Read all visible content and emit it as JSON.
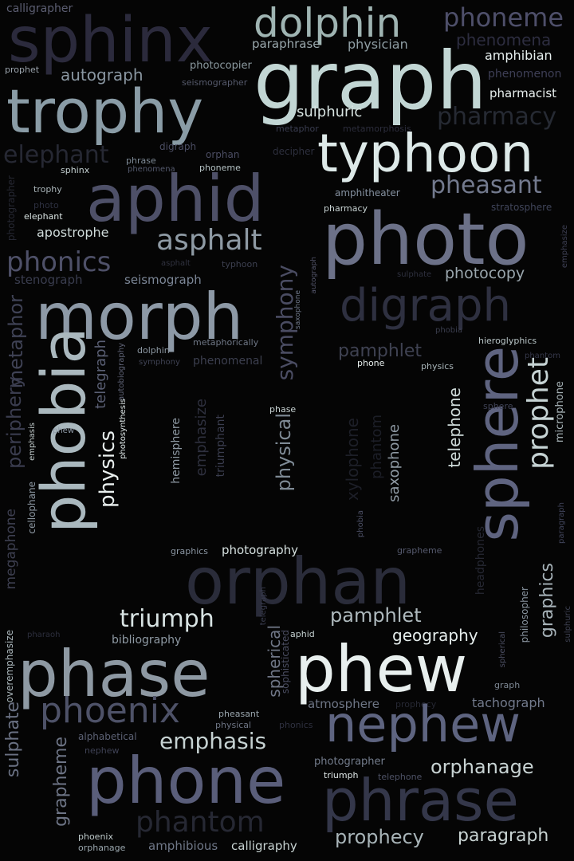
{
  "cloud": {
    "background": "#050505",
    "words": [
      {
        "text": "sphinx",
        "color": "#2b2a3c"
      },
      {
        "text": "dolphin",
        "color": "#9fb4b2"
      },
      {
        "text": "phoneme",
        "color": "#4e4f6a"
      },
      {
        "text": "phenomena",
        "color": "#2d2d40"
      },
      {
        "text": "graph",
        "color": "#c2d6d4"
      },
      {
        "text": "paraphrase",
        "color": "#9aa8ad"
      },
      {
        "text": "physician",
        "color": "#8f9ea4"
      },
      {
        "text": "amphibian",
        "color": "#e6efee"
      },
      {
        "text": "calligrapher",
        "color": "#5c5e72"
      },
      {
        "text": "prophet",
        "color": "#9aa3ac"
      },
      {
        "text": "autograph",
        "color": "#8a97a2"
      },
      {
        "text": "photocopier",
        "color": "#8c9aa0"
      },
      {
        "text": "seismographer",
        "color": "#565a6c"
      },
      {
        "text": "phenomenon",
        "color": "#3e3f56"
      },
      {
        "text": "pharmacist",
        "color": "#e9f0ef"
      },
      {
        "text": "trophy",
        "color": "#8a9ca6"
      },
      {
        "text": "sulphuric",
        "color": "#d8e4e2"
      },
      {
        "text": "pharmacy",
        "color": "#262a33"
      },
      {
        "text": "metaphor",
        "color": "#3a3d50"
      },
      {
        "text": "metamorphosis",
        "color": "#2c2d3c"
      },
      {
        "text": "typhoon",
        "color": "#dde9e8"
      },
      {
        "text": "digraph",
        "color": "#4b4d63"
      },
      {
        "text": "orphan",
        "color": "#4b4d63"
      },
      {
        "text": "decipher",
        "color": "#2d2f3d"
      },
      {
        "text": "elephant",
        "color": "#262833"
      },
      {
        "text": "phrase",
        "color": "#7e8a96"
      },
      {
        "text": "phenomena",
        "color": "#555a6e"
      },
      {
        "text": "phoneme",
        "color": "#b3c0c2"
      },
      {
        "text": "sphinx",
        "color": "#c5d1d2"
      },
      {
        "text": "pheasant",
        "color": "#737a8e"
      },
      {
        "text": "trophy",
        "color": "#a8b3b7"
      },
      {
        "text": "aphid",
        "color": "#4e5068"
      },
      {
        "text": "amphitheater",
        "color": "#8591a0"
      },
      {
        "text": "photo",
        "color": "#2c2f3f"
      },
      {
        "text": "elephant",
        "color": "#d8e2e1"
      },
      {
        "text": "pharmacy",
        "color": "#c7d2d2"
      },
      {
        "text": "stratosphere",
        "color": "#40455a"
      },
      {
        "text": "photo",
        "color": "#6c7188"
      },
      {
        "text": "apostrophe",
        "color": "#cfdbda"
      },
      {
        "text": "asphalt",
        "color": "#8e9aa4"
      },
      {
        "text": "phonics",
        "color": "#4e5068"
      },
      {
        "text": "asphalt",
        "color": "#30323f"
      },
      {
        "text": "typhoon",
        "color": "#3d4050"
      },
      {
        "text": "photographer",
        "color": "#262833"
      },
      {
        "text": "emphasize",
        "color": "#3e4054"
      },
      {
        "text": "sulphate",
        "color": "#2e303e"
      },
      {
        "text": "photocopy",
        "color": "#9aa6ad"
      },
      {
        "text": "stenograph",
        "color": "#3a3d4f"
      },
      {
        "text": "seismograph",
        "color": "#7b8696"
      },
      {
        "text": "morph",
        "color": "#8d99a6"
      },
      {
        "text": "digraph",
        "color": "#2e3040"
      },
      {
        "text": "symphony",
        "color": "#4a4c62"
      },
      {
        "text": "saxophone",
        "color": "#6e7788"
      },
      {
        "text": "autograph",
        "color": "#525469"
      },
      {
        "text": "metaphor",
        "color": "#3f4255"
      },
      {
        "text": "phobia",
        "color": "#3b3e4e"
      },
      {
        "text": "hieroglyphics",
        "color": "#b8c4c6"
      },
      {
        "text": "phantom",
        "color": "#353749"
      },
      {
        "text": "phobia",
        "color": "#aab8be"
      },
      {
        "text": "dolphin",
        "color": "#8d98a3"
      },
      {
        "text": "metaphorically",
        "color": "#6f7786"
      },
      {
        "text": "symphony",
        "color": "#3f4253"
      },
      {
        "text": "phenomenal",
        "color": "#3c3f4f"
      },
      {
        "text": "telegraph",
        "color": "#5a5f74"
      },
      {
        "text": "autobiography",
        "color": "#5e6275"
      },
      {
        "text": "phone",
        "color": "#e8efee"
      },
      {
        "text": "physics",
        "color": "#a8b4b8"
      },
      {
        "text": "sphere",
        "color": "#5f6480"
      },
      {
        "text": "prophet",
        "color": "#c5d2d3"
      },
      {
        "text": "microphone",
        "color": "#a6b2b6"
      },
      {
        "text": "pamphlet",
        "color": "#3f4252"
      },
      {
        "text": "periphery",
        "color": "#3a3c4e"
      },
      {
        "text": "emphasis",
        "color": "#c2cccc"
      },
      {
        "text": "phew",
        "color": "#8e99a6"
      },
      {
        "text": "physics",
        "color": "#eaf0ef"
      },
      {
        "text": "photosynthesis",
        "color": "#dfe8e8"
      },
      {
        "text": "phase",
        "color": "#c9d4d4"
      },
      {
        "text": "hemisphere",
        "color": "#8d98a2"
      },
      {
        "text": "emphasize",
        "color": "#2e303e"
      },
      {
        "text": "triumphant",
        "color": "#3a3d4e"
      },
      {
        "text": "physical",
        "color": "#7e8a95"
      },
      {
        "text": "xylophone",
        "color": "#1d1f28"
      },
      {
        "text": "phantom",
        "color": "#1c1e27"
      },
      {
        "text": "saxophone",
        "color": "#8e99a3"
      },
      {
        "text": "telephone",
        "color": "#cfdbda"
      },
      {
        "text": "sphere",
        "color": "#3f4255"
      },
      {
        "text": "megaphone",
        "color": "#3d3f50"
      },
      {
        "text": "cellophane",
        "color": "#8e99a4"
      },
      {
        "text": "graphics",
        "color": "#8a95a1"
      },
      {
        "text": "photography",
        "color": "#d5e0df"
      },
      {
        "text": "grapheme",
        "color": "#565a6e"
      },
      {
        "text": "paragraph",
        "color": "#40445a"
      },
      {
        "text": "headphones",
        "color": "#262833"
      },
      {
        "text": "graphics",
        "color": "#a8b4ba"
      },
      {
        "text": "philosopher",
        "color": "#8a95a0"
      },
      {
        "text": "phobia",
        "color": "#4c5066"
      },
      {
        "text": "orphan",
        "color": "#2a2c3a"
      },
      {
        "text": "pharaoh",
        "color": "#2d2f3d"
      },
      {
        "text": "triumph",
        "color": "#d8e3e3"
      },
      {
        "text": "telegraph",
        "color": "#3a3d50"
      },
      {
        "text": "pamphlet",
        "color": "#aeb9bd"
      },
      {
        "text": "sulphuric",
        "color": "#3e4152"
      },
      {
        "text": "aphid",
        "color": "#c5d1d1"
      },
      {
        "text": "bibliography",
        "color": "#8e99a3"
      },
      {
        "text": "geography",
        "color": "#e6eeed"
      },
      {
        "text": "spherical",
        "color": "#4b4e62"
      },
      {
        "text": "spherical",
        "color": "#6f7686"
      },
      {
        "text": "sophisticated",
        "color": "#4a4d61"
      },
      {
        "text": "overemphasize",
        "color": "#aab6bb"
      },
      {
        "text": "phase",
        "color": "#8e99a3"
      },
      {
        "text": "phew",
        "color": "#e8efee"
      },
      {
        "text": "graph",
        "color": "#7d8793"
      },
      {
        "text": "sulphate",
        "color": "#6a7183"
      },
      {
        "text": "phoenix",
        "color": "#4e5268"
      },
      {
        "text": "pheasant",
        "color": "#9aa6ae"
      },
      {
        "text": "physical",
        "color": "#6d7483"
      },
      {
        "text": "phonics",
        "color": "#2f3140"
      },
      {
        "text": "atmosphere",
        "color": "#6e7686"
      },
      {
        "text": "prophecy",
        "color": "#262833"
      },
      {
        "text": "tachograph",
        "color": "#727a8c"
      },
      {
        "text": "nephew",
        "color": "#5e6480"
      },
      {
        "text": "alphabetical",
        "color": "#5c6174"
      },
      {
        "text": "emphasis",
        "color": "#c5d1d1"
      },
      {
        "text": "nephew",
        "color": "#3f4255"
      },
      {
        "text": "grapheme",
        "color": "#6d7485"
      },
      {
        "text": "phone",
        "color": "#5a5e7a"
      },
      {
        "text": "photographer",
        "color": "#737c8c"
      },
      {
        "text": "triumph",
        "color": "#e2eaea"
      },
      {
        "text": "telephone",
        "color": "#4e5266"
      },
      {
        "text": "orphanage",
        "color": "#c8d3d3"
      },
      {
        "text": "phrase",
        "color": "#34374a"
      },
      {
        "text": "phantom",
        "color": "#262833"
      },
      {
        "text": "phoenix",
        "color": "#c0cbcc"
      },
      {
        "text": "orphanage",
        "color": "#9aa6ad"
      },
      {
        "text": "amphibious",
        "color": "#6f7787"
      },
      {
        "text": "calligraphy",
        "color": "#c8d3d2"
      },
      {
        "text": "prophecy",
        "color": "#a8b4b8"
      },
      {
        "text": "paragraph",
        "color": "#c8d3d2"
      }
    ]
  }
}
